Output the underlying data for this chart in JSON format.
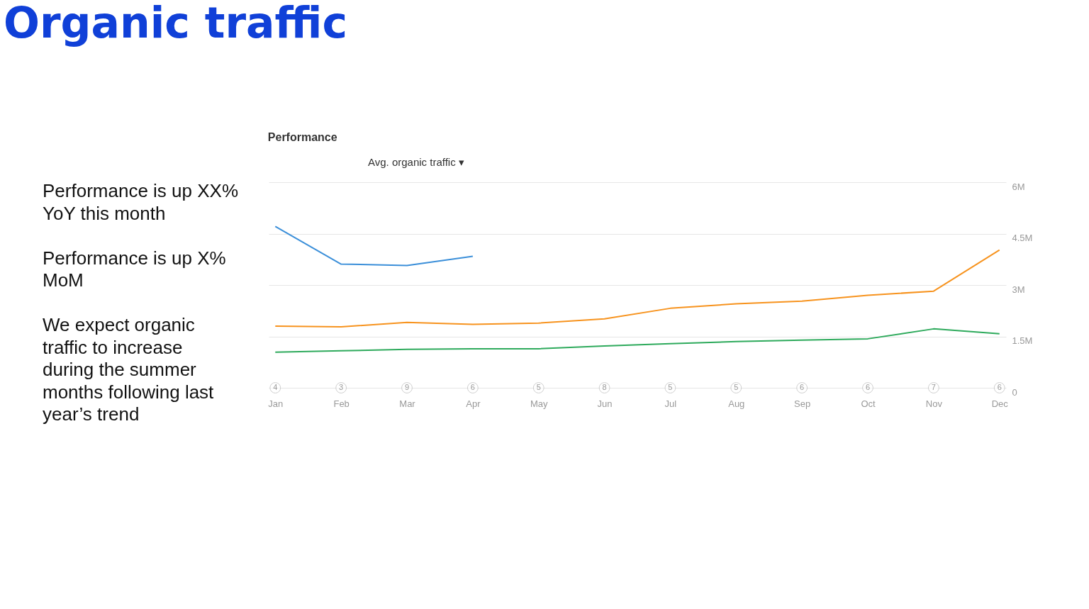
{
  "chart_data": {
    "type": "line",
    "title": "Organic traffic",
    "subtitle": "Performance",
    "categories": [
      "Jan",
      "Feb",
      "Mar",
      "Apr",
      "May",
      "Jun",
      "Jul",
      "Aug",
      "Sep",
      "Oct",
      "Nov",
      "Dec"
    ],
    "series": [
      {
        "color": "#3b8fd9",
        "values": [
          4.71,
          3.61,
          3.57,
          3.84,
          null,
          null,
          null,
          null,
          null,
          null,
          null,
          null
        ]
      },
      {
        "color": "#f7931e",
        "values": [
          1.8,
          1.78,
          1.91,
          1.85,
          1.89,
          2.01,
          2.32,
          2.45,
          2.53,
          2.7,
          2.82,
          4.02
        ]
      },
      {
        "color": "#2eaa5c",
        "values": [
          1.04,
          1.08,
          1.12,
          1.14,
          1.14,
          1.22,
          1.29,
          1.35,
          1.39,
          1.43,
          1.72,
          1.58
        ]
      }
    ],
    "ylim": [
      0,
      6
    ],
    "yticks": [
      0,
      {
        "value": 1.5,
        "label": "1.5M"
      },
      {
        "value": 3,
        "label": "3M"
      },
      {
        "value": 4.5,
        "label": "4.5M"
      },
      {
        "value": 6,
        "label": "6M"
      }
    ],
    "grid": "y",
    "annotations": [
      "Avg. organic traffic ▾",
      "Performance is up XX% YoY this month",
      "Performance is up X% MoM",
      "We expect organic traffic to increase during the summer months following last year’s trend",
      {
        "text": "4",
        "x": "Jan",
        "y": 0
      },
      {
        "text": "3",
        "x": "Feb",
        "y": 0
      },
      {
        "text": "9",
        "x": "Mar",
        "y": 0
      },
      {
        "text": "6",
        "x": "Apr",
        "y": 0
      },
      {
        "text": "5",
        "x": "May",
        "y": 0
      },
      {
        "text": "8",
        "x": "Jun",
        "y": 0
      },
      {
        "text": "5",
        "x": "Jul",
        "y": 0
      },
      {
        "text": "5",
        "x": "Aug",
        "y": 0
      },
      {
        "text": "6",
        "x": "Sep",
        "y": 0
      },
      {
        "text": "6",
        "x": "Oct",
        "y": 0
      },
      {
        "text": "7",
        "x": "Nov",
        "y": 0
      },
      {
        "text": "6",
        "x": "Dec",
        "y": 0
      }
    ]
  }
}
